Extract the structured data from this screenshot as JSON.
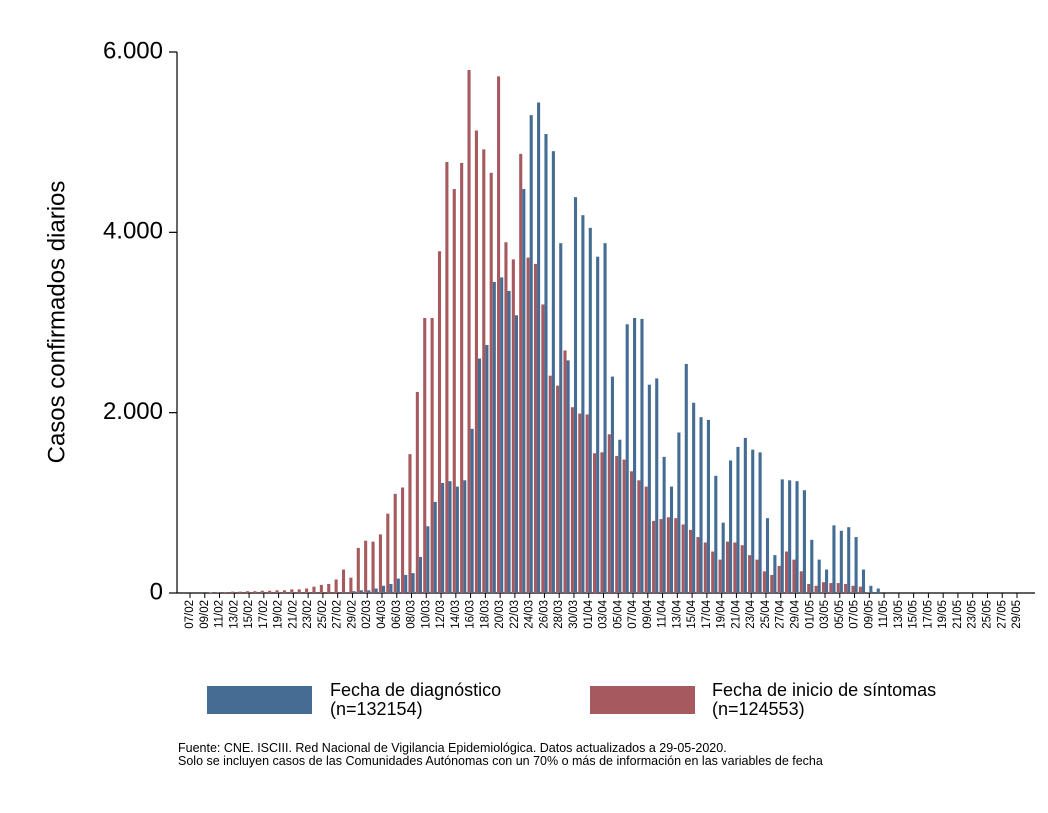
{
  "chart_data": {
    "type": "bar",
    "y_label": "Casos confirmados diarios",
    "categories": [
      "07/02",
      null,
      "09/02",
      null,
      "11/02",
      null,
      "13/02",
      null,
      "15/02",
      null,
      "17/02",
      null,
      "19/02",
      null,
      "21/02",
      null,
      "23/02",
      null,
      "25/02",
      null,
      "27/02",
      null,
      "29/02",
      null,
      "02/03",
      null,
      "04/03",
      null,
      "06/03",
      null,
      "08/03",
      null,
      "10/03",
      null,
      "12/03",
      null,
      "14/03",
      null,
      "16/03",
      null,
      "18/03",
      null,
      "20/03",
      null,
      "22/03",
      null,
      "24/03",
      null,
      "26/03",
      null,
      "28/03",
      null,
      "30/03",
      null,
      "01/04",
      null,
      "03/04",
      null,
      "05/04",
      null,
      "07/04",
      null,
      "09/04",
      null,
      "11/04",
      null,
      "13/04",
      null,
      "15/04",
      null,
      "17/04",
      null,
      "19/04",
      null,
      "21/04",
      null,
      "23/04",
      null,
      "25/04",
      null,
      "27/04",
      null,
      "29/04",
      null,
      "01/05",
      null,
      "03/05",
      null,
      "05/05",
      null,
      "07/05",
      null,
      "09/05",
      null,
      "11/05",
      null,
      "13/05",
      null,
      "15/05",
      null,
      "17/05",
      null,
      "19/05",
      null,
      "21/05",
      null,
      "23/05",
      null,
      "25/05",
      null,
      "27/05",
      null,
      "29/05"
    ],
    "series": [
      {
        "name": "Fecha de diagnóstico\n(n=132154)",
        "color": "#456d93",
        "values": [
          0,
          0,
          0,
          0,
          0,
          0,
          0,
          0,
          0,
          0,
          0,
          0,
          0,
          0,
          0,
          0,
          0,
          0,
          0,
          0,
          0,
          10,
          20,
          30,
          30,
          50,
          80,
          100,
          160,
          200,
          220,
          400,
          740,
          1010,
          1220,
          1240,
          1180,
          1250,
          1820,
          2600,
          2750,
          3450,
          3500,
          3350,
          3080,
          4480,
          5300,
          5440,
          5090,
          4900,
          3880,
          2580,
          4390,
          4190,
          4050,
          3730,
          3880,
          2400,
          1700,
          2980,
          3050,
          3040,
          2310,
          2380,
          1510,
          1180,
          1780,
          2540,
          2110,
          1950,
          1920,
          1300,
          780,
          1470,
          1620,
          1720,
          1590,
          1560,
          830,
          420,
          1260,
          1250,
          1240,
          1140,
          590,
          370,
          260,
          750,
          690,
          730,
          620,
          260,
          80,
          50,
          0,
          0,
          0,
          0,
          0,
          0,
          0,
          0,
          0,
          0,
          0,
          0,
          0,
          0,
          0,
          0,
          0,
          0,
          0
        ]
      },
      {
        "name": "Fecha de inicio de síntomas\n(n=124553)",
        "color": "#a65a5f",
        "values": [
          0,
          0,
          0,
          5,
          10,
          10,
          15,
          15,
          20,
          20,
          25,
          25,
          30,
          30,
          40,
          40,
          50,
          70,
          90,
          100,
          150,
          260,
          170,
          500,
          580,
          570,
          650,
          880,
          1100,
          1170,
          1540,
          2230,
          3050,
          3050,
          3790,
          4780,
          4480,
          4770,
          5800,
          5130,
          4920,
          4660,
          5730,
          3890,
          3700,
          4870,
          3720,
          3650,
          3200,
          2410,
          2300,
          2690,
          2060,
          1990,
          1980,
          1550,
          1560,
          1760,
          1520,
          1480,
          1350,
          1250,
          1180,
          800,
          820,
          840,
          830,
          760,
          700,
          620,
          560,
          460,
          370,
          570,
          560,
          530,
          420,
          370,
          240,
          200,
          300,
          460,
          370,
          240,
          100,
          80,
          120,
          110,
          110,
          100,
          80,
          70,
          10,
          0,
          0,
          0,
          0,
          0,
          0,
          0,
          0,
          0,
          0,
          0,
          0,
          0,
          0,
          0,
          0,
          0,
          0,
          0,
          0
        ]
      }
    ],
    "ylim": [
      0,
      6000
    ],
    "yticks": [
      0,
      {
        "value": 2000,
        "label": "2.000"
      },
      {
        "value": 4000,
        "label": "4.000"
      },
      {
        "value": 6000,
        "label": "6.000"
      }
    ],
    "grid": false,
    "notes": [
      "Fuente: CNE. ISCIII. Red Nacional de Vigilancia Epidemiológica. Datos actualizados a 29-05-2020.",
      "Solo se incluyen casos de las Comunidades Autónomas con un 70% o más de información en las variables de fecha"
    ]
  }
}
